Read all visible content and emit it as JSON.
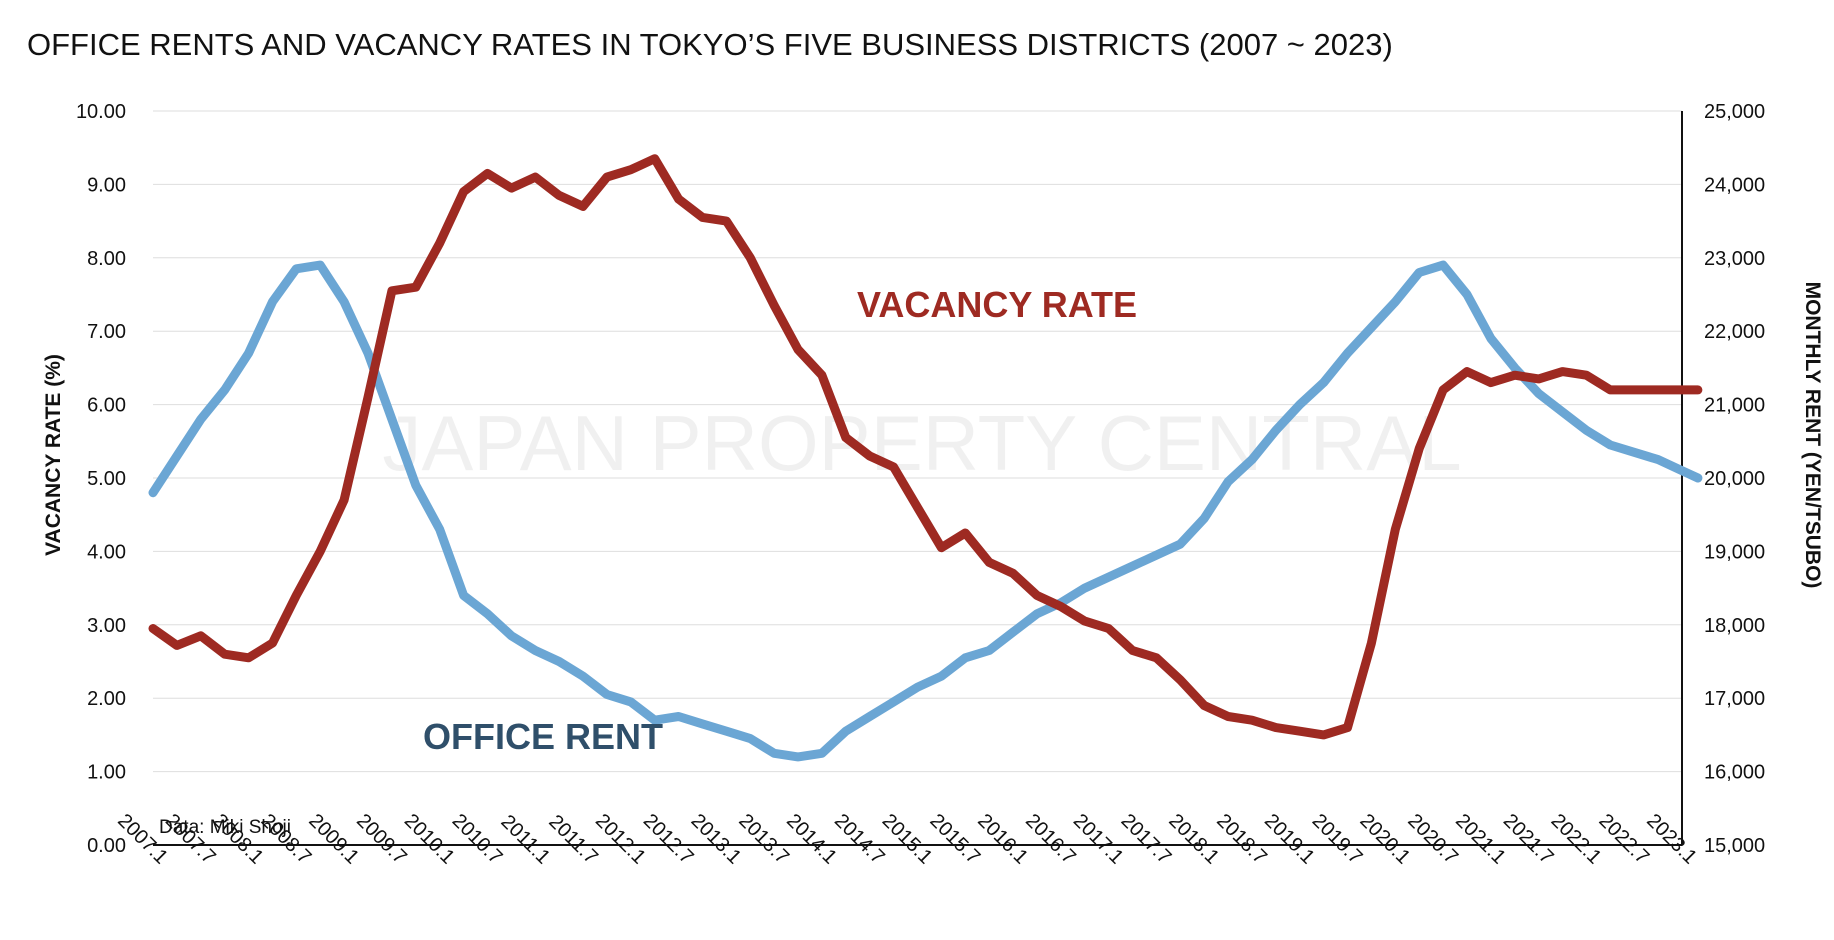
{
  "chart_data": {
    "type": "line",
    "title": "OFFICE RENTS AND VACANCY RATES IN TOKYO’S FIVE BUSINESS DISTRICTS (2007 ~ 2023)",
    "ylabel": "VACANCY RATE (%)",
    "y2label": "MONTHLY RENT (YEN/TSUBO)",
    "source": "Data: Miki Shoji",
    "watermark": "JAPAN PROPERTY CENTRAL",
    "ylim": [
      0,
      10
    ],
    "y2lim": [
      15000,
      25000
    ],
    "grid": true,
    "yticks": [
      "0.00",
      "1.00",
      "2.00",
      "3.00",
      "4.00",
      "5.00",
      "6.00",
      "7.00",
      "8.00",
      "9.00",
      "10.00"
    ],
    "y2ticks": [
      "15,000",
      "16,000",
      "17,000",
      "18,000",
      "19,000",
      "20,000",
      "21,000",
      "22,000",
      "23,000",
      "24,000",
      "25,000"
    ],
    "xticks": [
      "2007.1",
      "2007.7",
      "2008.1",
      "2008.7",
      "2009.1",
      "2009.7",
      "2010.1",
      "2010.7",
      "2011.1",
      "2011.7",
      "2012.1",
      "2012.7",
      "2013.1",
      "2013.7",
      "2014.1",
      "2014.7",
      "2015.1",
      "2015.7",
      "2016.1",
      "2016.7",
      "2017.1",
      "2017.7",
      "2018.1",
      "2018.7",
      "2019.1",
      "2019.7",
      "2020.1",
      "2020.7",
      "2021.1",
      "2021.7",
      "2022.1",
      "2022.7",
      "2023.1"
    ],
    "series": [
      {
        "name": "VACANCY RATE",
        "axis": "left",
        "color": "#9e2a22",
        "x": [
          "2007.1",
          "2007.4",
          "2007.7",
          "2007.10",
          "2008.1",
          "2008.4",
          "2008.7",
          "2008.10",
          "2009.1",
          "2009.4",
          "2009.7",
          "2009.10",
          "2010.1",
          "2010.4",
          "2010.7",
          "2010.10",
          "2011.1",
          "2011.4",
          "2011.7",
          "2011.10",
          "2012.1",
          "2012.4",
          "2012.7",
          "2012.10",
          "2013.1",
          "2013.4",
          "2013.7",
          "2013.10",
          "2014.1",
          "2014.4",
          "2014.7",
          "2014.10",
          "2015.1",
          "2015.4",
          "2015.7",
          "2015.10",
          "2016.1",
          "2016.4",
          "2016.7",
          "2016.10",
          "2017.1",
          "2017.4",
          "2017.7",
          "2017.10",
          "2018.1",
          "2018.4",
          "2018.7",
          "2018.10",
          "2019.1",
          "2019.4",
          "2019.7",
          "2019.10",
          "2020.1",
          "2020.4",
          "2020.7",
          "2020.10",
          "2021.1",
          "2021.4",
          "2021.7",
          "2021.10",
          "2022.1",
          "2022.4",
          "2022.7",
          "2022.10",
          "2023.1",
          "2023.3"
        ],
        "values": [
          2.95,
          2.72,
          2.85,
          2.6,
          2.55,
          2.75,
          3.4,
          4.0,
          4.7,
          6.1,
          7.55,
          7.6,
          8.2,
          8.9,
          9.15,
          8.95,
          9.1,
          8.85,
          8.7,
          9.1,
          9.2,
          9.35,
          8.8,
          8.55,
          8.5,
          8.0,
          7.35,
          6.75,
          6.4,
          5.55,
          5.3,
          5.15,
          4.6,
          4.05,
          4.25,
          3.85,
          3.7,
          3.4,
          3.25,
          3.05,
          2.95,
          2.65,
          2.55,
          2.25,
          1.9,
          1.75,
          1.7,
          1.6,
          1.55,
          1.5,
          1.6,
          2.75,
          4.3,
          5.4,
          6.2,
          6.45,
          6.3,
          6.4,
          6.35,
          6.45,
          6.4,
          6.2,
          6.2,
          6.2,
          6.2,
          6.2
        ]
      },
      {
        "name": "OFFICE RENT",
        "axis": "right",
        "color": "#6ba6d4",
        "x": [
          "2007.1",
          "2007.4",
          "2007.7",
          "2007.10",
          "2008.1",
          "2008.4",
          "2008.7",
          "2008.10",
          "2009.1",
          "2009.4",
          "2009.7",
          "2009.10",
          "2010.1",
          "2010.4",
          "2010.7",
          "2010.10",
          "2011.1",
          "2011.4",
          "2011.7",
          "2011.10",
          "2012.1",
          "2012.4",
          "2012.7",
          "2012.10",
          "2013.1",
          "2013.4",
          "2013.7",
          "2013.10",
          "2014.1",
          "2014.4",
          "2014.7",
          "2014.10",
          "2015.1",
          "2015.4",
          "2015.7",
          "2015.10",
          "2016.1",
          "2016.4",
          "2016.7",
          "2016.10",
          "2017.1",
          "2017.4",
          "2017.7",
          "2017.10",
          "2018.1",
          "2018.4",
          "2018.7",
          "2018.10",
          "2019.1",
          "2019.4",
          "2019.7",
          "2019.10",
          "2020.1",
          "2020.4",
          "2020.7",
          "2020.10",
          "2021.1",
          "2021.4",
          "2021.7",
          "2021.10",
          "2022.1",
          "2022.4",
          "2022.7",
          "2022.10",
          "2023.1",
          "2023.3"
        ],
        "values": [
          19800,
          20300,
          20800,
          21200,
          21700,
          22400,
          22850,
          22900,
          22400,
          21700,
          20800,
          19900,
          19300,
          18400,
          18150,
          17850,
          17650,
          17500,
          17300,
          17050,
          16950,
          16700,
          16750,
          16650,
          16550,
          16450,
          16250,
          16200,
          16250,
          16550,
          16750,
          16950,
          17150,
          17300,
          17550,
          17650,
          17900,
          18150,
          18300,
          18500,
          18650,
          18800,
          18950,
          19100,
          19450,
          19950,
          20250,
          20650,
          21000,
          21300,
          21700,
          22050,
          22400,
          22800,
          22900,
          22500,
          21900,
          21500,
          21150,
          20900,
          20650,
          20450,
          20350,
          20250,
          20100,
          20000
        ]
      }
    ]
  }
}
